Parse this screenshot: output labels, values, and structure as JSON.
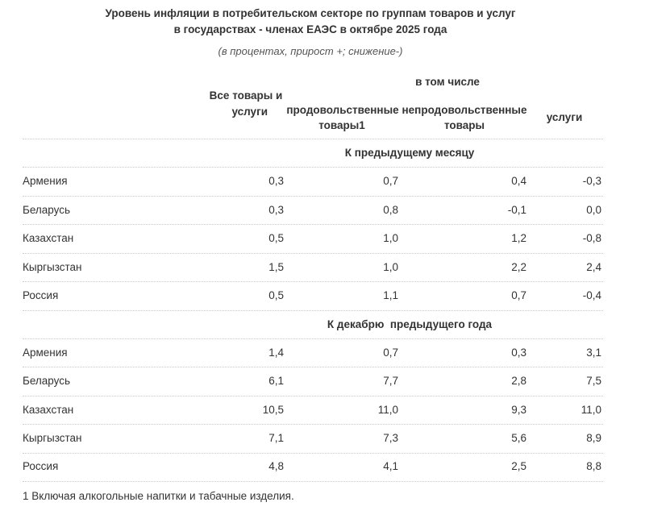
{
  "title_line1": "Уровень инфляции в потребительском секторе по группам товаров и услуг",
  "title_line2": "в государствах - членах ЕАЭС в октябре 2025 года",
  "subtitle": "(в процентах, прирост +; снижение-)",
  "header": {
    "all_goods_line1": "Все товары и",
    "all_goods_line2": "услуги",
    "including": "в том числе",
    "food_line1": "продовольственные",
    "food_line2": "товары1",
    "nonfood_line1": "непродовольственные",
    "nonfood_line2": "товары",
    "services": "услуги"
  },
  "sections": [
    {
      "title": "К предыдущему месяцу",
      "rows": [
        {
          "country": "Армения",
          "all": "0,3",
          "food": "0,7",
          "nonfood": "0,4",
          "services": "-0,3"
        },
        {
          "country": "Беларусь",
          "all": "0,3",
          "food": "0,8",
          "nonfood": "-0,1",
          "services": "0,0"
        },
        {
          "country": "Казахстан",
          "all": "0,5",
          "food": "1,0",
          "nonfood": "1,2",
          "services": "-0,8"
        },
        {
          "country": "Кыргызстан",
          "all": "1,5",
          "food": "1,0",
          "nonfood": "2,2",
          "services": "2,4"
        },
        {
          "country": "Россия",
          "all": "0,5",
          "food": "1,1",
          "nonfood": "0,7",
          "services": "-0,4"
        }
      ]
    },
    {
      "title": "К декабрю  предыдущего года",
      "rows": [
        {
          "country": "Армения",
          "all": "1,4",
          "food": "0,7",
          "nonfood": "0,3",
          "services": "3,1"
        },
        {
          "country": "Беларусь",
          "all": "6,1",
          "food": "7,7",
          "nonfood": "2,8",
          "services": "7,5"
        },
        {
          "country": "Казахстан",
          "all": "10,5",
          "food": "11,0",
          "nonfood": "9,3",
          "services": "11,0"
        },
        {
          "country": "Кыргызстан",
          "all": "7,1",
          "food": "7,3",
          "nonfood": "5,6",
          "services": "8,9"
        },
        {
          "country": "Россия",
          "all": "4,8",
          "food": "4,1",
          "nonfood": "2,5",
          "services": "8,8"
        }
      ]
    }
  ],
  "footnote": "1 Включая алкогольные напитки и табачные изделия."
}
